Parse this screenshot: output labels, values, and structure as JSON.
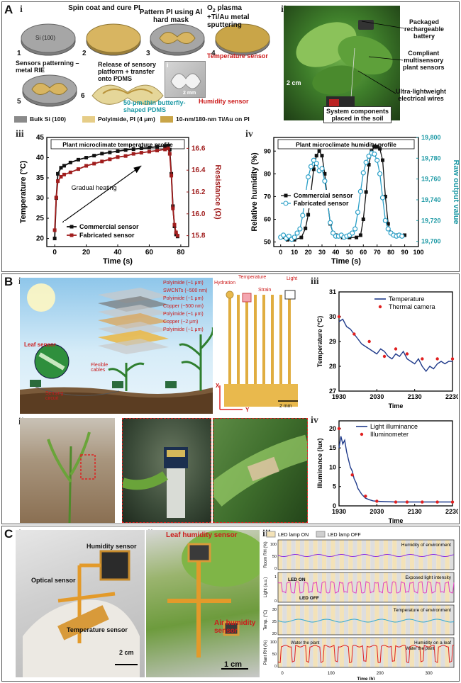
{
  "panels": {
    "A": "A",
    "B": "B",
    "C": "C",
    "A_i": "i",
    "A_ii": "ii",
    "A_iii": "iii",
    "A_iv": "iv",
    "B_i": "i",
    "B_ii": "ii",
    "B_iii": "iii",
    "B_iv": "iv",
    "C_i": "i",
    "C_ii": "ii",
    "C_iii": "iii"
  },
  "fab": {
    "si": "Si (100)",
    "step1_num": "1",
    "step2_num": "2",
    "step3_num": "3",
    "step4_num": "4",
    "step5_num": "5",
    "step6_num": "6",
    "step2": "Spin coat and cure PI",
    "step3": "Pattern PI using Al hard mask",
    "step4a": "O",
    "step4b": "2",
    "step4c": " plasma",
    "step4d": "+Ti/Au metal sputtering",
    "step5": "Sensors patterning –\nmetal RIE",
    "step6": "Release of sensory\nplatform + transfer\nonto PDMS",
    "temp_sensor": "Temperature sensor",
    "humidity_sensor": "Humidity sensor",
    "pdms": "50-μm-thin butterfly-\nshaped PDMS",
    "inset_label": "i",
    "scale": "2 mm",
    "legend_si": "Bulk Si (100)",
    "legend_pi": "Polyimide, PI (4 μm)",
    "legend_metal": "10-nm/180-nm Ti/Au on PI"
  },
  "plant_photo": {
    "battery": "Packaged\nrechargeable\nbattery",
    "sensors": "Compliant\nmultisensory\nplant sensors",
    "wires": "Ultra-lightweight\nelectrical wires",
    "components": "System components\nplaced in the soil",
    "scale": "2 cm"
  },
  "chart_data": [
    {
      "type": "line",
      "title": "Plant microclimate temperature profile",
      "xlabel": "Time (s)",
      "ylabel": "Temperature (°C)",
      "y2label": "Resistance (Ω)",
      "xlim": [
        -5,
        85
      ],
      "ylim": [
        18,
        45
      ],
      "y2lim": [
        15.7,
        16.7
      ],
      "xticks": [
        "0",
        "20",
        "40",
        "60",
        "80"
      ],
      "yticks": [
        "20",
        "25",
        "30",
        "35",
        "40",
        "45"
      ],
      "y2ticks": [
        "15.8",
        "16.0",
        "16.2",
        "16.4",
        "16.6"
      ],
      "annotation": "Gradual heating",
      "series": [
        {
          "name": "Commercial sensor",
          "color": "#111111",
          "axis": "left",
          "x": [
            0,
            1,
            2,
            4,
            6,
            10,
            15,
            20,
            25,
            30,
            35,
            40,
            45,
            50,
            55,
            60,
            65,
            70,
            72,
            73,
            74,
            75,
            76,
            77,
            78
          ],
          "y": [
            20,
            30,
            36,
            37.5,
            38,
            38.8,
            39.5,
            40,
            40.5,
            41,
            41.3,
            41.6,
            41.9,
            42.1,
            42.3,
            42.5,
            42.7,
            42.9,
            43,
            42,
            36,
            28,
            23,
            21,
            20.5
          ]
        },
        {
          "name": "Fabricated sensor",
          "color": "#a01d1d",
          "axis": "right",
          "x": [
            0,
            1,
            2,
            4,
            6,
            10,
            15,
            20,
            25,
            30,
            35,
            40,
            45,
            50,
            55,
            60,
            65,
            70,
            72,
            73,
            74,
            75,
            76,
            77,
            78
          ],
          "y": [
            15.85,
            16.15,
            16.3,
            16.34,
            16.36,
            16.38,
            16.41,
            16.44,
            16.46,
            16.48,
            16.5,
            16.52,
            16.53,
            16.55,
            16.56,
            16.57,
            16.58,
            16.59,
            16.6,
            16.55,
            16.35,
            16.05,
            15.9,
            15.83,
            15.8
          ]
        }
      ]
    },
    {
      "type": "line",
      "title": "Plant microclimate humidity profile",
      "xlabel": "Time (s)",
      "ylabel": "Relative humidity (%)",
      "y2label": "Raw output value",
      "xlim": [
        -5,
        100
      ],
      "ylim": [
        48,
        96
      ],
      "y2lim": [
        19695,
        19800
      ],
      "xticks": [
        "0",
        "10",
        "20",
        "30",
        "40",
        "50",
        "60",
        "70",
        "80",
        "90",
        "100"
      ],
      "yticks": [
        "50",
        "60",
        "70",
        "80",
        "90"
      ],
      "y2ticks": [
        "19,700",
        "19,720",
        "19,740",
        "19,760",
        "19,780",
        "19,800"
      ],
      "series": [
        {
          "name": "Commercial sensor",
          "color": "#111111",
          "axis": "left",
          "x": [
            0,
            5,
            10,
            15,
            18,
            20,
            22,
            24,
            26,
            28,
            30,
            32,
            34,
            36,
            38,
            40,
            45,
            50,
            55,
            58,
            60,
            62,
            64,
            66,
            68,
            70,
            72,
            74,
            76,
            78,
            80,
            85,
            90
          ],
          "y": [
            52,
            51,
            51,
            52,
            56,
            62,
            72,
            82,
            88,
            90,
            88,
            80,
            68,
            58,
            54,
            53,
            52,
            52,
            52,
            53,
            60,
            72,
            84,
            90,
            92,
            92,
            91,
            86,
            70,
            58,
            54,
            53,
            53
          ]
        },
        {
          "name": "Fabricated sensor",
          "color": "#2a9fc7",
          "axis": "right",
          "x": [
            0,
            2,
            4,
            6,
            8,
            10,
            12,
            14,
            16,
            18,
            20,
            22,
            24,
            26,
            28,
            30,
            32,
            34,
            36,
            38,
            40,
            42,
            44,
            46,
            48,
            50,
            52,
            54,
            56,
            58,
            60,
            62,
            64,
            66,
            68,
            70,
            72,
            74,
            76,
            78,
            80,
            82,
            84,
            86,
            88
          ],
          "y": [
            19704,
            19706,
            19703,
            19705,
            19702,
            19704,
            19708,
            19712,
            19725,
            19745,
            19762,
            19772,
            19778,
            19775,
            19768,
            19770,
            19758,
            19738,
            19718,
            19708,
            19705,
            19705,
            19706,
            19704,
            19705,
            19706,
            19708,
            19712,
            19728,
            19748,
            19766,
            19776,
            19782,
            19785,
            19784,
            19778,
            19765,
            19742,
            19720,
            19712,
            19708,
            19706,
            19705,
            19706,
            19705
          ]
        }
      ]
    },
    {
      "type": "line",
      "xlabel": "Time",
      "ylabel": "Temperature (°C)",
      "xlim": [
        1930,
        2230
      ],
      "ylim": [
        27,
        31
      ],
      "xticks": [
        "1930",
        "2030",
        "2130",
        "2230"
      ],
      "yticks": [
        "27",
        "28",
        "29",
        "30",
        "31"
      ],
      "series": [
        {
          "name": "Temperature",
          "color": "#1f3a8a",
          "x": [
            1930,
            1940,
            1950,
            1960,
            1970,
            1980,
            1990,
            2000,
            2010,
            2020,
            2030,
            2040,
            2050,
            2060,
            2070,
            2080,
            2090,
            2100,
            2110,
            2120,
            2130,
            2140,
            2150,
            2160,
            2170,
            2180,
            2190,
            2200,
            2210,
            2220,
            2230
          ],
          "y": [
            29.8,
            29.9,
            29.6,
            29.5,
            29.3,
            29.1,
            28.9,
            28.8,
            28.7,
            28.6,
            28.5,
            28.7,
            28.6,
            28.4,
            28.3,
            28.5,
            28.4,
            28.6,
            28.3,
            28.2,
            28.1,
            28.3,
            28.0,
            27.8,
            28.0,
            27.9,
            28.1,
            28.2,
            28.1,
            28.2,
            28.2
          ]
        },
        {
          "name": "Thermal camera",
          "color": "#e02020",
          "type": "scatter",
          "x": [
            1930,
            1970,
            2010,
            2050,
            2080,
            2110,
            2150,
            2190,
            2230
          ],
          "y": [
            30.0,
            29.3,
            29.0,
            28.4,
            28.7,
            28.5,
            28.3,
            28.3,
            28.3
          ]
        }
      ]
    },
    {
      "type": "line",
      "xlabel": "Time",
      "ylabel": "Illuminance (lux)",
      "xlim": [
        1930,
        2230
      ],
      "ylim": [
        0,
        22
      ],
      "xticks": [
        "1930",
        "2030",
        "2130",
        "2230"
      ],
      "yticks": [
        "0",
        "5",
        "10",
        "15",
        "20"
      ],
      "series": [
        {
          "name": "Light illuminance",
          "color": "#1f3a8a",
          "x": [
            1930,
            1935,
            1940,
            1945,
            1950,
            1955,
            1960,
            1965,
            1970,
            1975,
            1980,
            1990,
            2000,
            2010,
            2020,
            2030,
            2050,
            2080,
            2110,
            2150,
            2190,
            2230
          ],
          "y": [
            15,
            18,
            16,
            17,
            14,
            12,
            10,
            9,
            7,
            6,
            4.5,
            3,
            2,
            1.6,
            1.3,
            1.2,
            1.1,
            1.0,
            1.0,
            1.0,
            1.0,
            1.0
          ]
        },
        {
          "name": "Illuminometer",
          "color": "#e02020",
          "type": "scatter",
          "x": [
            1930,
            1965,
            2000,
            2030,
            2080,
            2110,
            2150,
            2190,
            2230
          ],
          "y": [
            20,
            8,
            2.5,
            1.2,
            1,
            1,
            1,
            1,
            1
          ]
        }
      ]
    }
  ],
  "layers": {
    "l1": "Polyimide (~1 μm)",
    "l2": "SWCNTs (~500 nm)",
    "l3": "Polyimide (~1 μm)",
    "l4": "Copper (~500 nm)",
    "l5": "Polyimide (~1 μm)",
    "l6": "Copper (~2 μm)",
    "l7": "Polyimide (~1 μm)",
    "leaf_sensor": "Leaf sensor",
    "flexible_cables": "Flexible\ncables",
    "sensing_circuit": "Sensing\ncircuit"
  },
  "sensor_layout": {
    "hydration": "Hydration",
    "temperature": "Temperature",
    "light": "Light",
    "strain": "Strain",
    "x": "X",
    "y": "Y",
    "scale": "2 mm"
  },
  "c_labels": {
    "humidity_sensor": "Humidity sensor",
    "optical_sensor": "Optical sensor",
    "temperature_sensor": "Temperature sensor",
    "scale1": "2 cm",
    "leaf_humidity": "Leaf humidity sensor",
    "air_humidity": "Air humidity\nsensor",
    "scale2": "1 cm"
  },
  "c_iii": {
    "legend_on": "LED lamp ON",
    "legend_off": "LED lamp OFF",
    "row1_label": "Room RH (%)",
    "row1_title": "Humidity of environment",
    "row2_label": "Light (a.u.)",
    "row2_title": "Exposed light intensity",
    "led_on": "LED ON",
    "led_off": "LED OFF",
    "row3_label": "Temp. (°C)",
    "row3_title": "Temperature of environment",
    "row4_label": "Plant RH (%)",
    "row4_title": "Humidity on a leaf",
    "water1": "Water the plant",
    "water2": "Water the plant",
    "xlabel": "Time (h)",
    "xticks": [
      "0",
      "100",
      "200",
      "300"
    ],
    "row1_ticks": [
      "100",
      "50",
      "0"
    ],
    "row2_ticks": [
      "1",
      "0"
    ],
    "row3_ticks": [
      "30",
      "25",
      "20"
    ],
    "row4_ticks": [
      "100",
      "50",
      "0"
    ]
  }
}
